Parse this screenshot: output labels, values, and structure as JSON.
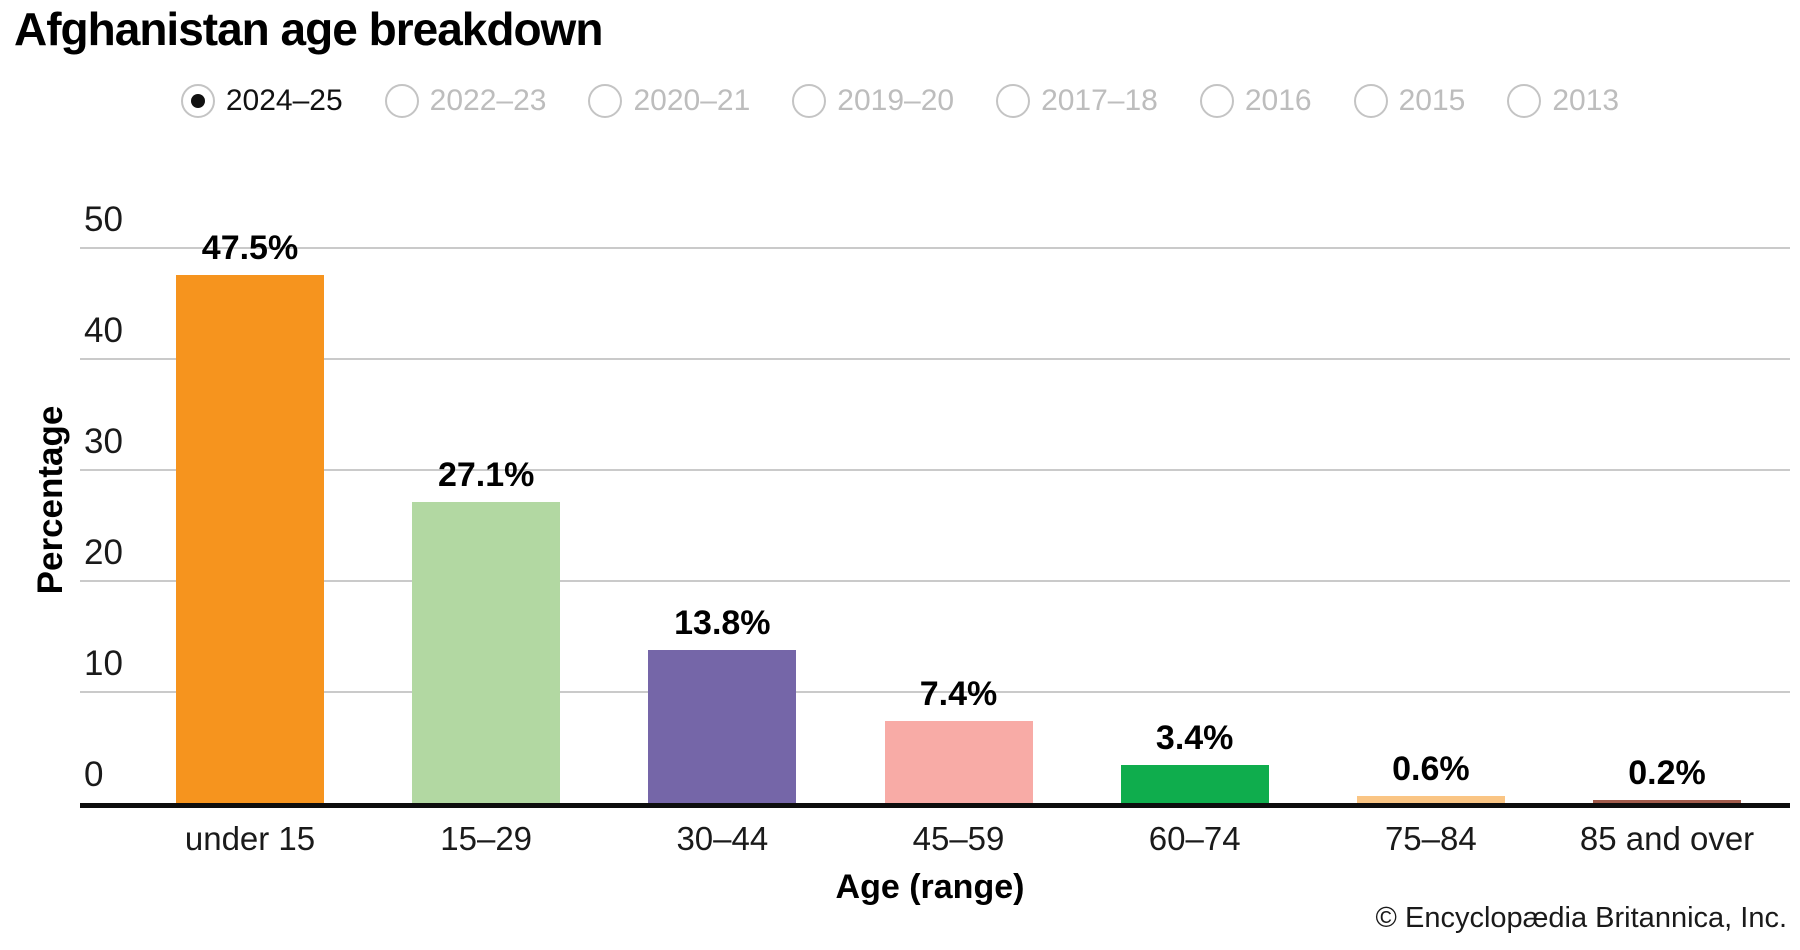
{
  "title": "Afghanistan age breakdown",
  "year_selector": {
    "options": [
      {
        "label": "2024–25",
        "selected": true
      },
      {
        "label": "2022–23",
        "selected": false
      },
      {
        "label": "2020–21",
        "selected": false
      },
      {
        "label": "2019–20",
        "selected": false
      },
      {
        "label": "2017–18",
        "selected": false
      },
      {
        "label": "2016",
        "selected": false
      },
      {
        "label": "2015",
        "selected": false
      },
      {
        "label": "2013",
        "selected": false
      }
    ]
  },
  "chart_data": {
    "type": "bar",
    "title": "Afghanistan age breakdown",
    "series_name": "2024–25",
    "categories": [
      "under 15",
      "15–29",
      "30–44",
      "45–59",
      "60–74",
      "75–84",
      "85 and over"
    ],
    "values": [
      47.5,
      27.1,
      13.8,
      7.4,
      3.4,
      0.6,
      0.2
    ],
    "value_labels": [
      "47.5%",
      "27.1%",
      "13.8%",
      "7.4%",
      "3.4%",
      "0.6%",
      "0.2%"
    ],
    "bar_colors": [
      "#F6941E",
      "#B2D8A2",
      "#7566A8",
      "#F8ABA6",
      "#0FAD4D",
      "#FAC584",
      "#A15B4B"
    ],
    "xlabel": "Age (range)",
    "ylabel": "Percentage",
    "ylim": [
      0,
      50
    ],
    "yticks": [
      0,
      10,
      20,
      30,
      40,
      50
    ],
    "grid": true,
    "legend": "none",
    "gridline_color": "#cacaca",
    "axis_color": "#0d0d0d"
  },
  "footer": {
    "copyright": "© Encyclopædia Britannica, Inc."
  }
}
